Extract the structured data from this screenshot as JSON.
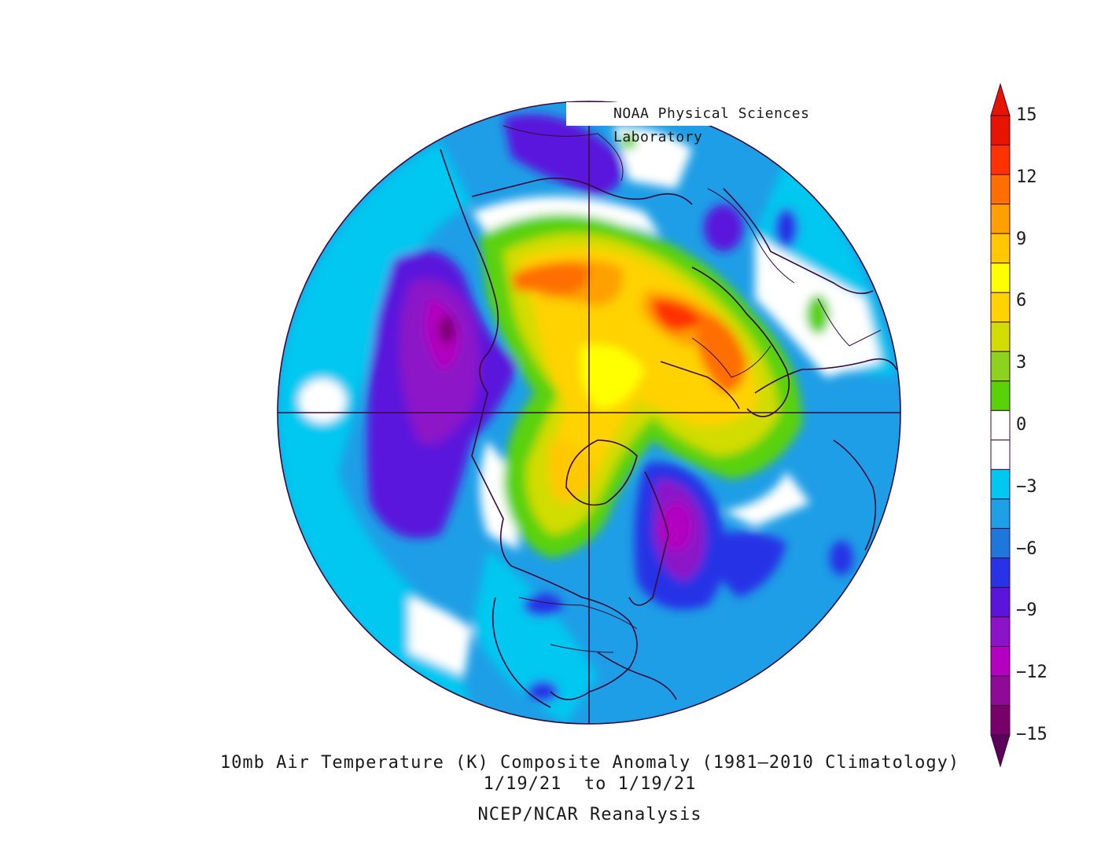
{
  "credit": "NOAA Physical Sciences Laboratory",
  "caption": {
    "title": "10mb Air Temperature (K) Composite Anomaly (1981–2010 Climatology)",
    "dates": "1/19/21  to 1/19/21",
    "source": "NCEP/NCAR Reanalysis"
  },
  "colorbar": {
    "labels": [
      "15",
      "12",
      "9",
      "6",
      "3",
      "0",
      "−3",
      "−6",
      "−9",
      "−12",
      "−15"
    ],
    "colors": [
      "#78006a",
      "#8f0a96",
      "#b400c0",
      "#8c14c8",
      "#5a14dc",
      "#2832e6",
      "#1e78dc",
      "#1ea0e6",
      "#00c8f0",
      "#ffffff",
      "#ffffff",
      "#5ad20a",
      "#8cd21e",
      "#d2dc00",
      "#ffd200",
      "#ffff00",
      "#ffc800",
      "#ffa000",
      "#ff6e00",
      "#ff3200",
      "#e61400"
    ],
    "top_arrow_color": "#e61400",
    "bottom_arrow_color": "#5a005a"
  },
  "map": {
    "projection": "north-polar-stereographic",
    "ocean_color": "#00c8f0",
    "line_color": "#3a0a3a"
  }
}
